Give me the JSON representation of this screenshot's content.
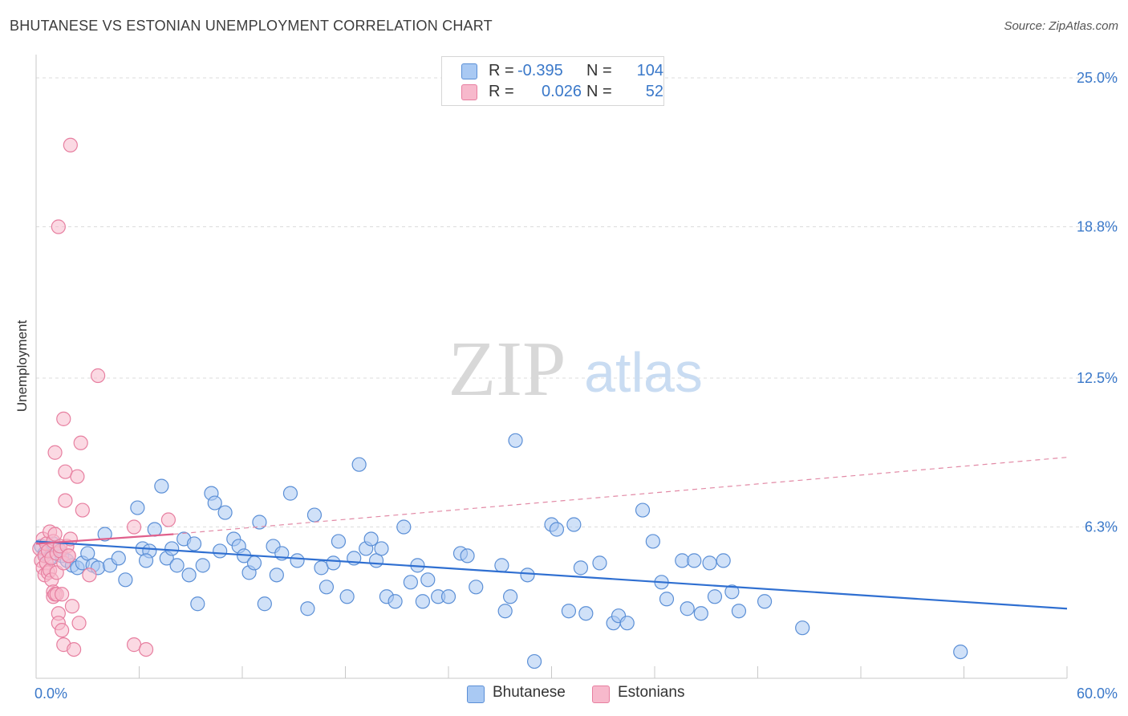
{
  "header": {
    "title": "BHUTANESE VS ESTONIAN UNEMPLOYMENT CORRELATION CHART",
    "source": "Source: ZipAtlas.com"
  },
  "watermark": {
    "zip": "ZIP",
    "atlas": "atlas"
  },
  "legend": {
    "rows": [
      {
        "r_label": "R =",
        "r_value": "-0.395",
        "n_label": "N =",
        "n_value": "104",
        "color": "#a9c9f3",
        "border": "#5b8fd6"
      },
      {
        "r_label": "R =",
        "r_value": "0.026",
        "n_label": "N =",
        "n_value": "52",
        "color": "#f7b9cc",
        "border": "#e77fa0"
      }
    ]
  },
  "bottom_legend": {
    "items": [
      {
        "label": "Bhutanese",
        "color": "#a9c9f3",
        "border": "#5b8fd6"
      },
      {
        "label": "Estonians",
        "color": "#f7b9cc",
        "border": "#e77fa0"
      }
    ]
  },
  "chart_data": {
    "type": "scatter",
    "title": "BHUTANESE VS ESTONIAN UNEMPLOYMENT CORRELATION CHART",
    "ylabel": "Unemployment",
    "xlabel": "",
    "xlim": [
      0,
      60
    ],
    "ylim": [
      0,
      25
    ],
    "x_tick_labels": [
      {
        "value": 0,
        "label": "0.0%"
      },
      {
        "value": 60,
        "label": "60.0%"
      }
    ],
    "y_tick_labels": [
      {
        "value": 6.3,
        "label": "6.3%"
      },
      {
        "value": 12.5,
        "label": "12.5%"
      },
      {
        "value": 18.8,
        "label": "18.8%"
      },
      {
        "value": 25.0,
        "label": "25.0%"
      }
    ],
    "grid": true,
    "legend_position": "top-center",
    "series": [
      {
        "name": "Bhutanese",
        "color": "#5b8fd6",
        "fill": "#a9c9f3",
        "trend": {
          "x": [
            0,
            60
          ],
          "y": [
            5.7,
            2.9
          ]
        },
        "points": [
          [
            0.3,
            5.5
          ],
          [
            0.5,
            5.2
          ],
          [
            0.8,
            5.0
          ],
          [
            1.0,
            5.6
          ],
          [
            1.3,
            5.4
          ],
          [
            1.5,
            5.1
          ],
          [
            1.8,
            4.9
          ],
          [
            2.1,
            4.7
          ],
          [
            2.4,
            4.6
          ],
          [
            2.7,
            4.8
          ],
          [
            3.0,
            5.2
          ],
          [
            3.3,
            4.7
          ],
          [
            3.6,
            4.6
          ],
          [
            4.0,
            6.0
          ],
          [
            4.3,
            4.7
          ],
          [
            4.8,
            5.0
          ],
          [
            5.2,
            4.1
          ],
          [
            5.9,
            7.1
          ],
          [
            6.2,
            5.4
          ],
          [
            6.6,
            5.3
          ],
          [
            6.4,
            4.9
          ],
          [
            6.9,
            6.2
          ],
          [
            7.3,
            8.0
          ],
          [
            7.6,
            5.0
          ],
          [
            7.9,
            5.4
          ],
          [
            8.2,
            4.7
          ],
          [
            8.6,
            5.8
          ],
          [
            8.9,
            4.3
          ],
          [
            9.2,
            5.6
          ],
          [
            9.4,
            3.1
          ],
          [
            9.7,
            4.7
          ],
          [
            10.2,
            7.7
          ],
          [
            10.4,
            7.3
          ],
          [
            10.7,
            5.3
          ],
          [
            11.0,
            6.9
          ],
          [
            11.5,
            5.8
          ],
          [
            11.8,
            5.5
          ],
          [
            12.1,
            5.1
          ],
          [
            12.4,
            4.4
          ],
          [
            12.7,
            4.8
          ],
          [
            13.0,
            6.5
          ],
          [
            13.3,
            3.1
          ],
          [
            13.8,
            5.5
          ],
          [
            14.0,
            4.3
          ],
          [
            14.3,
            5.2
          ],
          [
            14.8,
            7.7
          ],
          [
            15.2,
            4.9
          ],
          [
            15.8,
            2.9
          ],
          [
            16.2,
            6.8
          ],
          [
            16.6,
            4.6
          ],
          [
            16.9,
            3.8
          ],
          [
            17.3,
            4.8
          ],
          [
            17.6,
            5.7
          ],
          [
            18.1,
            3.4
          ],
          [
            18.5,
            5.0
          ],
          [
            18.8,
            8.9
          ],
          [
            19.2,
            5.4
          ],
          [
            19.5,
            5.8
          ],
          [
            19.8,
            4.9
          ],
          [
            20.1,
            5.4
          ],
          [
            20.4,
            3.4
          ],
          [
            20.9,
            3.2
          ],
          [
            21.4,
            6.3
          ],
          [
            21.8,
            4.0
          ],
          [
            22.2,
            4.7
          ],
          [
            22.5,
            3.2
          ],
          [
            22.8,
            4.1
          ],
          [
            23.4,
            3.4
          ],
          [
            24.0,
            3.4
          ],
          [
            24.7,
            5.2
          ],
          [
            25.1,
            5.1
          ],
          [
            25.6,
            3.8
          ],
          [
            27.1,
            4.7
          ],
          [
            27.3,
            2.8
          ],
          [
            27.6,
            3.4
          ],
          [
            27.9,
            9.9
          ],
          [
            28.6,
            4.3
          ],
          [
            29.0,
            0.7
          ],
          [
            30.0,
            6.4
          ],
          [
            30.3,
            6.2
          ],
          [
            31.0,
            2.8
          ],
          [
            31.3,
            6.4
          ],
          [
            31.7,
            4.6
          ],
          [
            32.0,
            2.7
          ],
          [
            32.8,
            4.8
          ],
          [
            33.6,
            2.3
          ],
          [
            33.9,
            2.6
          ],
          [
            34.4,
            2.3
          ],
          [
            35.3,
            7.0
          ],
          [
            35.9,
            5.7
          ],
          [
            36.4,
            4.0
          ],
          [
            36.7,
            3.3
          ],
          [
            37.6,
            4.9
          ],
          [
            37.9,
            2.9
          ],
          [
            38.3,
            4.9
          ],
          [
            38.7,
            2.7
          ],
          [
            39.2,
            4.8
          ],
          [
            39.5,
            3.4
          ],
          [
            40.0,
            4.9
          ],
          [
            40.5,
            3.6
          ],
          [
            40.9,
            2.8
          ],
          [
            42.4,
            3.2
          ],
          [
            44.6,
            2.1
          ],
          [
            53.8,
            1.1
          ]
        ]
      },
      {
        "name": "Estonians",
        "color": "#e77fa0",
        "fill": "#f7b9cc",
        "trend": {
          "x": [
            0,
            8
          ],
          "y": [
            5.6,
            6.0
          ],
          "dashed_x": [
            8,
            60
          ],
          "dashed_y": [
            6.0,
            9.2
          ]
        },
        "points": [
          [
            0.2,
            5.4
          ],
          [
            0.3,
            4.9
          ],
          [
            0.4,
            4.6
          ],
          [
            0.4,
            5.8
          ],
          [
            0.5,
            5.1
          ],
          [
            0.5,
            4.3
          ],
          [
            0.6,
            5.6
          ],
          [
            0.6,
            4.8
          ],
          [
            0.7,
            4.4
          ],
          [
            0.7,
            5.3
          ],
          [
            0.8,
            6.1
          ],
          [
            0.8,
            4.5
          ],
          [
            0.9,
            5.0
          ],
          [
            0.9,
            4.1
          ],
          [
            1.0,
            5.7
          ],
          [
            1.0,
            3.6
          ],
          [
            1.0,
            3.4
          ],
          [
            1.1,
            6.0
          ],
          [
            1.1,
            9.4
          ],
          [
            1.1,
            3.5
          ],
          [
            1.2,
            5.2
          ],
          [
            1.2,
            3.5
          ],
          [
            1.2,
            4.4
          ],
          [
            1.3,
            2.7
          ],
          [
            1.3,
            2.3
          ],
          [
            1.3,
            18.8
          ],
          [
            1.4,
            5.3
          ],
          [
            1.4,
            5.5
          ],
          [
            1.5,
            3.5
          ],
          [
            1.5,
            2.0
          ],
          [
            1.6,
            1.4
          ],
          [
            1.6,
            4.8
          ],
          [
            1.6,
            10.8
          ],
          [
            1.7,
            8.6
          ],
          [
            1.7,
            7.4
          ],
          [
            1.8,
            5.5
          ],
          [
            1.9,
            5.1
          ],
          [
            2.0,
            22.2
          ],
          [
            2.0,
            5.8
          ],
          [
            2.1,
            3.0
          ],
          [
            2.2,
            1.2
          ],
          [
            2.4,
            8.4
          ],
          [
            2.5,
            2.3
          ],
          [
            2.6,
            9.8
          ],
          [
            2.7,
            7.0
          ],
          [
            3.1,
            4.3
          ],
          [
            3.6,
            12.6
          ],
          [
            5.7,
            6.3
          ],
          [
            5.7,
            1.4
          ],
          [
            6.4,
            1.2
          ],
          [
            7.7,
            6.6
          ],
          [
            1.9,
            5.1
          ]
        ]
      }
    ]
  }
}
